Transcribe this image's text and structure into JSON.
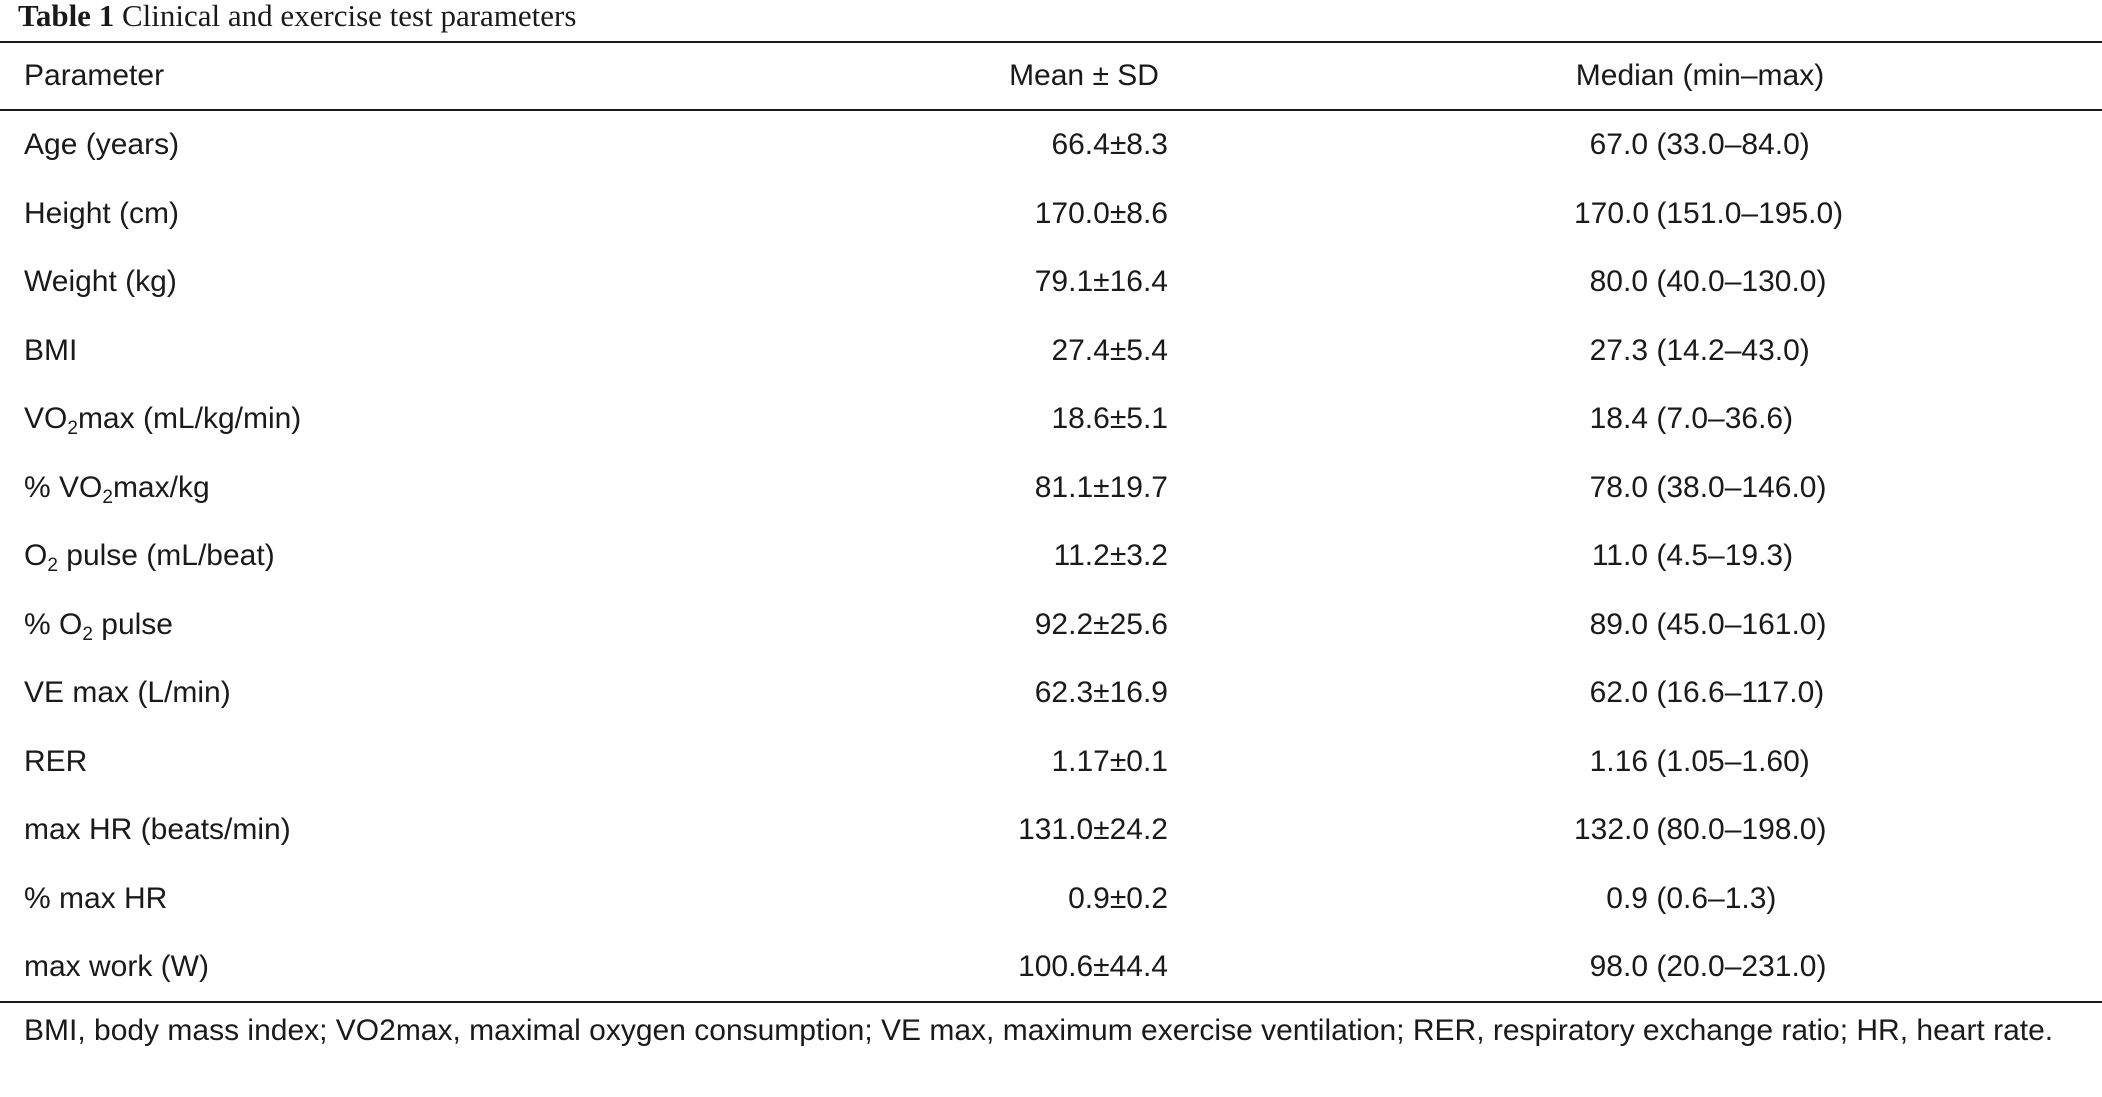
{
  "caption": {
    "label": "Table 1",
    "title": "Clinical and exercise test parameters"
  },
  "header": {
    "col1": "Parameter",
    "col2": "Mean ± SD",
    "col3": "Median (min–max)"
  },
  "rows": [
    {
      "p_pre": "Age (years)",
      "p_sub": "",
      "p_post": "",
      "mean": "66.4±8.3",
      "median": "67.0",
      "range": "(33.0–84.0)"
    },
    {
      "p_pre": "Height (cm)",
      "p_sub": "",
      "p_post": "",
      "mean": "170.0±8.6",
      "median": "170.0",
      "range": "(151.0–195.0)"
    },
    {
      "p_pre": "Weight (kg)",
      "p_sub": "",
      "p_post": "",
      "mean": "79.1±16.4",
      "median": "80.0",
      "range": "(40.0–130.0)"
    },
    {
      "p_pre": "BMI",
      "p_sub": "",
      "p_post": "",
      "mean": "27.4±5.4",
      "median": "27.3",
      "range": "(14.2–43.0)"
    },
    {
      "p_pre": "VO",
      "p_sub": "2",
      "p_post": "max (mL/kg/min)",
      "mean": "18.6±5.1",
      "median": "18.4",
      "range": "(7.0–36.6)"
    },
    {
      "p_pre": "% VO",
      "p_sub": "2",
      "p_post": "max/kg",
      "mean": "81.1±19.7",
      "median": "78.0",
      "range": "(38.0–146.0)"
    },
    {
      "p_pre": "O",
      "p_sub": "2",
      "p_post": " pulse (mL/beat)",
      "mean": "11.2±3.2",
      "median": "11.0",
      "range": "(4.5–19.3)"
    },
    {
      "p_pre": "% O",
      "p_sub": "2",
      "p_post": " pulse",
      "mean": "92.2±25.6",
      "median": "89.0",
      "range": "(45.0–161.0)"
    },
    {
      "p_pre": "VE max (L/min)",
      "p_sub": "",
      "p_post": "",
      "mean": "62.3±16.9",
      "median": "62.0",
      "range": "(16.6–117.0)"
    },
    {
      "p_pre": "RER",
      "p_sub": "",
      "p_post": "",
      "mean": "1.17±0.1",
      "median": "1.16",
      "range": "(1.05–1.60)"
    },
    {
      "p_pre": "max HR (beats/min)",
      "p_sub": "",
      "p_post": "",
      "mean": "131.0±24.2",
      "median": "132.0",
      "range": "(80.0–198.0)"
    },
    {
      "p_pre": "% max HR",
      "p_sub": "",
      "p_post": "",
      "mean": "0.9±0.2",
      "median": "0.9",
      "range": "(0.6–1.3)"
    },
    {
      "p_pre": "max work (W)",
      "p_sub": "",
      "p_post": "",
      "mean": "100.6±44.4",
      "median": "98.0",
      "range": "(20.0–231.0)"
    }
  ],
  "footnote": "BMI, body mass index; VO2max, maximal oxygen consumption; VE max, maximum exercise ventilation; RER, respiratory exchange ratio; HR, heart rate."
}
